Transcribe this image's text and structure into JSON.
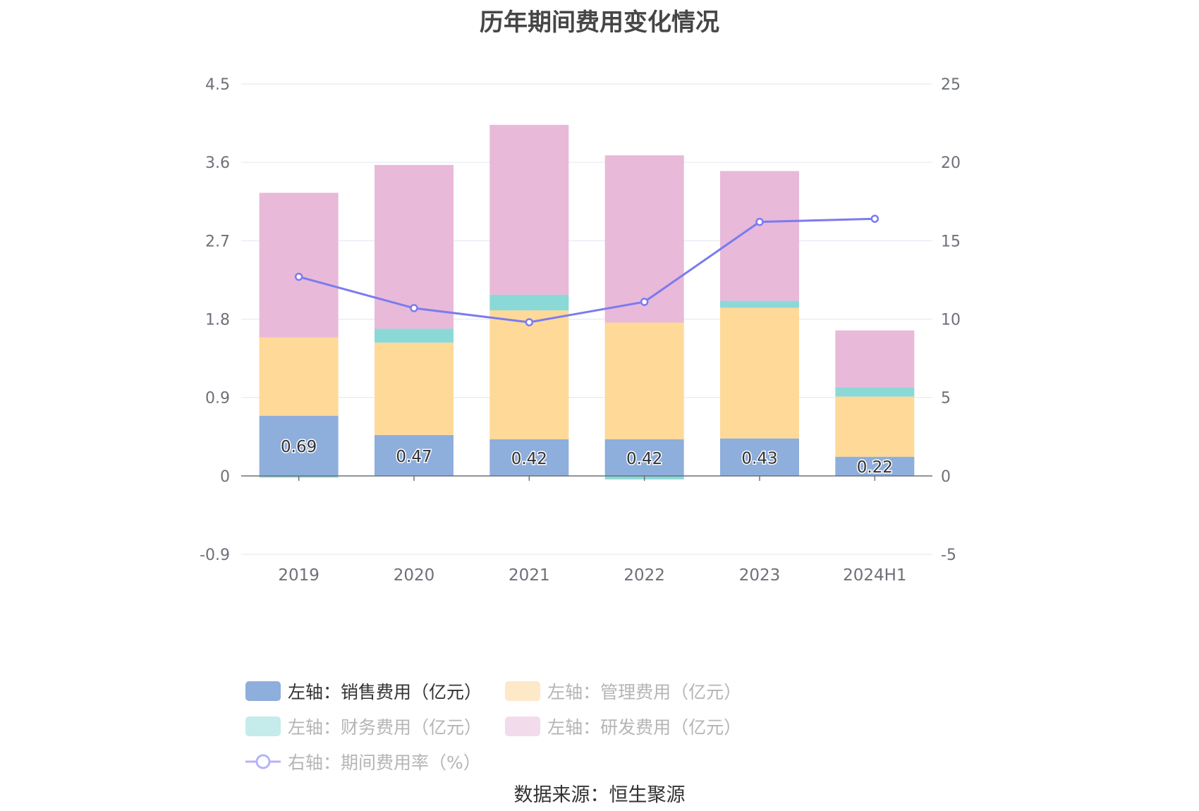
{
  "chart_data": {
    "type": "bar",
    "title": "历年期间费用变化情况",
    "categories": [
      "2019",
      "2020",
      "2021",
      "2022",
      "2023",
      "2024H1"
    ],
    "stacked": true,
    "left_axis": {
      "ticks": [
        "4.5",
        "3.6",
        "2.7",
        "1.8",
        "0.9",
        "0",
        "-0.9"
      ],
      "range": [
        -0.9,
        4.5
      ]
    },
    "right_axis": {
      "ticks": [
        "25",
        "20",
        "15",
        "10",
        "5",
        "0",
        "-5"
      ],
      "range": [
        -5,
        25
      ]
    },
    "series": [
      {
        "name": "左轴：销售费用（亿元）",
        "axis": "left",
        "color": "#8eaedc",
        "values": [
          0.69,
          0.47,
          0.42,
          0.42,
          0.43,
          0.22
        ],
        "labels": [
          "0.69",
          "0.47",
          "0.42",
          "0.42",
          "0.43",
          "0.22"
        ]
      },
      {
        "name": "左轴：管理费用（亿元）",
        "axis": "left",
        "color": "#fed998",
        "values": [
          0.9,
          1.06,
          1.48,
          1.34,
          1.5,
          0.69
        ]
      },
      {
        "name": "左轴：财务费用（亿元）",
        "axis": "left",
        "color": "#8bd9d6",
        "values": [
          -0.02,
          0.16,
          0.18,
          -0.04,
          0.08,
          0.11
        ]
      },
      {
        "name": "左轴：研发费用（亿元）",
        "axis": "left",
        "color": "#e8b9d9",
        "values": [
          1.66,
          1.88,
          1.95,
          1.92,
          1.49,
          0.65
        ]
      },
      {
        "name": "右轴：期间费用率（%）",
        "axis": "right",
        "type": "line",
        "color": "#7b7bef",
        "values": [
          12.7,
          10.7,
          9.8,
          11.1,
          16.2,
          16.4
        ]
      }
    ]
  },
  "legend": {
    "items": [
      {
        "label": "左轴：销售费用（亿元）",
        "color": "#8eaedc",
        "active": true
      },
      {
        "label": "左轴：管理费用（亿元）",
        "color": "#fde8c8",
        "active": false
      },
      {
        "label": "左轴：财务费用（亿元）",
        "color": "#c5ebea",
        "active": false
      },
      {
        "label": "左轴：研发费用（亿元）",
        "color": "#f2dcec",
        "active": false
      },
      {
        "label": "右轴：期间费用率（%）",
        "color": "#b4b4f6",
        "active": false
      }
    ]
  },
  "source": "数据来源：恒生聚源"
}
